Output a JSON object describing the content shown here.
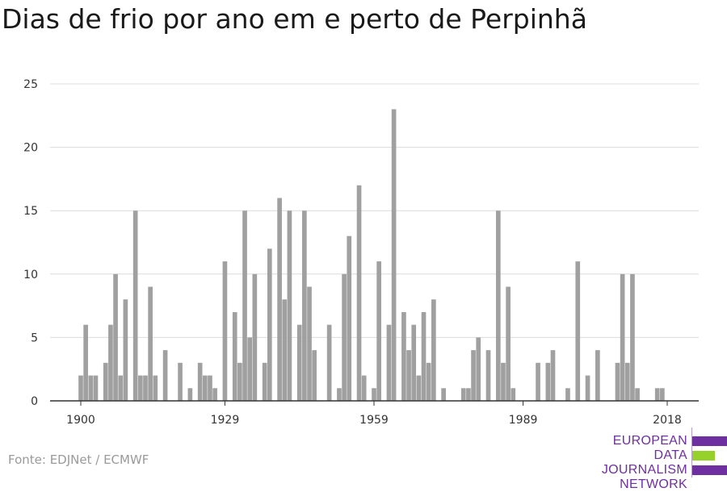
{
  "title": "Dias de frio por ano em e perto de Perpinhã",
  "source": "Fonte: EDJNet / ECMWF",
  "logo": {
    "line1": "EUROPEAN",
    "line2": "DATA JOURNALISM",
    "line3": "NETWORK",
    "colors": {
      "purple": "#6e2fa0",
      "green": "#95d12a"
    }
  },
  "chart_data": {
    "type": "bar",
    "title": "",
    "xlabel": "",
    "ylabel": "",
    "ylim": [
      0,
      25
    ],
    "yticks": [
      0,
      5,
      10,
      15,
      20,
      25
    ],
    "xticks": [
      1900,
      1929,
      1959,
      1989,
      2018
    ],
    "xlim": [
      1899,
      2019
    ],
    "grid": true,
    "bar_color": "#a0a0a0",
    "x": [
      1900,
      1901,
      1902,
      1903,
      1904,
      1905,
      1906,
      1907,
      1908,
      1909,
      1910,
      1911,
      1912,
      1913,
      1914,
      1915,
      1916,
      1917,
      1918,
      1919,
      1920,
      1921,
      1922,
      1923,
      1924,
      1925,
      1926,
      1927,
      1928,
      1929,
      1930,
      1931,
      1932,
      1933,
      1934,
      1935,
      1936,
      1937,
      1938,
      1939,
      1940,
      1941,
      1942,
      1943,
      1944,
      1945,
      1946,
      1947,
      1948,
      1949,
      1950,
      1951,
      1952,
      1953,
      1954,
      1955,
      1956,
      1957,
      1958,
      1959,
      1960,
      1961,
      1962,
      1963,
      1964,
      1965,
      1966,
      1967,
      1968,
      1969,
      1970,
      1971,
      1972,
      1973,
      1974,
      1975,
      1976,
      1977,
      1978,
      1979,
      1980,
      1981,
      1982,
      1983,
      1984,
      1985,
      1986,
      1987,
      1988,
      1989,
      1990,
      1991,
      1992,
      1993,
      1994,
      1995,
      1996,
      1997,
      1998,
      1999,
      2000,
      2001,
      2002,
      2003,
      2004,
      2005,
      2006,
      2007,
      2008,
      2009,
      2010,
      2011,
      2012,
      2013,
      2014,
      2015,
      2016,
      2017,
      2018
    ],
    "values": [
      2,
      6,
      2,
      2,
      0,
      3,
      6,
      10,
      2,
      8,
      0,
      15,
      2,
      2,
      9,
      2,
      0,
      4,
      0,
      0,
      3,
      0,
      1,
      0,
      3,
      2,
      2,
      1,
      0,
      11,
      0,
      7,
      3,
      15,
      5,
      10,
      0,
      3,
      12,
      0,
      16,
      8,
      15,
      0,
      6,
      15,
      9,
      4,
      0,
      0,
      6,
      0,
      1,
      10,
      13,
      0,
      17,
      2,
      0,
      1,
      11,
      0,
      6,
      23,
      0,
      7,
      4,
      6,
      2,
      7,
      3,
      8,
      0,
      1,
      0,
      0,
      0,
      1,
      1,
      4,
      5,
      0,
      4,
      0,
      15,
      3,
      9,
      1,
      0,
      0,
      0,
      0,
      3,
      0,
      3,
      4,
      0,
      0,
      1,
      0,
      11,
      0,
      2,
      0,
      4,
      0,
      0,
      0,
      3,
      10,
      3,
      10,
      1,
      0,
      0,
      0,
      1,
      1,
      0
    ]
  }
}
